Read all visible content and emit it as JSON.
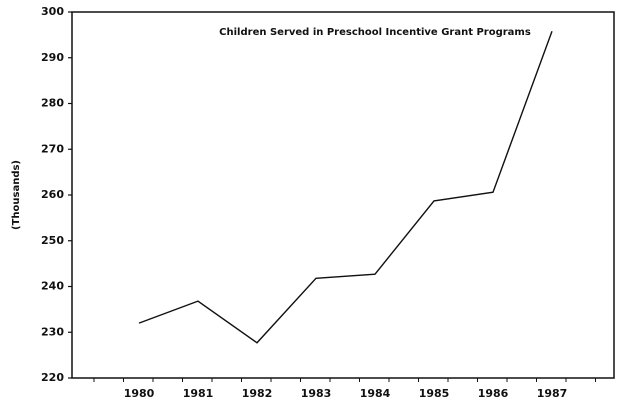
{
  "chart_data": {
    "type": "line",
    "title": "Children Served in Preschool Incentive Grant Programs",
    "y_label": "(Thousands)",
    "categories": [
      "1980",
      "1981",
      "1982",
      "1983",
      "1984",
      "1985",
      "1986",
      "1987"
    ],
    "values": [
      232,
      236.8,
      227.7,
      241.8,
      242.7,
      258.7,
      260.6,
      295.8
    ],
    "color": "#111111",
    "ylim": [
      220,
      300
    ],
    "yticks": [
      220,
      230,
      240,
      250,
      260,
      270,
      280,
      290,
      300
    ]
  }
}
